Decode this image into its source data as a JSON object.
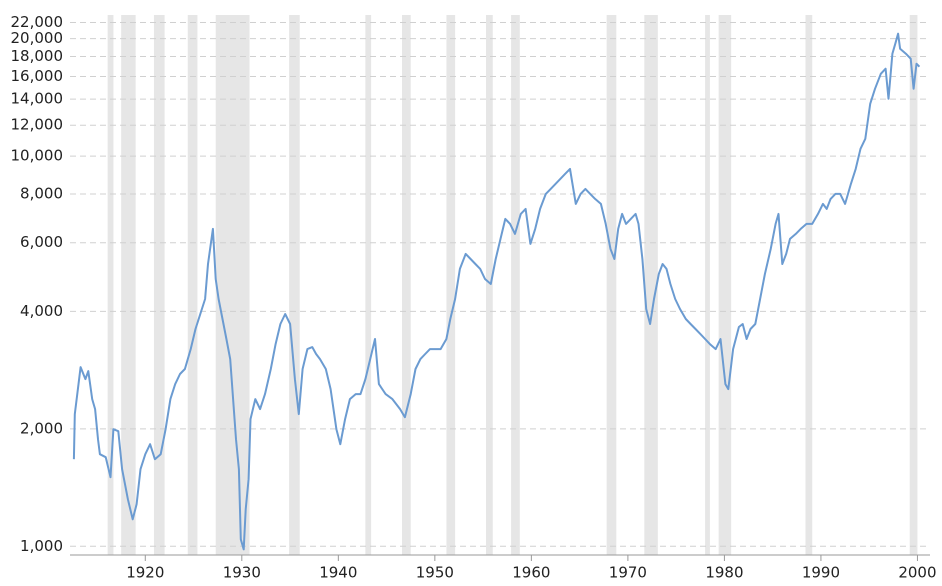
{
  "chart_data": {
    "type": "line",
    "log_scale": true,
    "grid": true,
    "xlim": [
      1912.2,
      2001.3
    ],
    "xticks": [
      1920,
      1930,
      1940,
      1950,
      1960,
      1970,
      1980,
      1990,
      2000
    ],
    "ylim": [
      950,
      23000
    ],
    "yticks": [
      {
        "value": 1000,
        "label": "1,000"
      },
      {
        "value": 2000,
        "label": "2,000"
      },
      {
        "value": 4000,
        "label": "4,000"
      },
      {
        "value": 6000,
        "label": "6,000"
      },
      {
        "value": 8000,
        "label": "8,000"
      },
      {
        "value": 10000,
        "label": "10,000"
      },
      {
        "value": 12000,
        "label": "12,000"
      },
      {
        "value": 14000,
        "label": "14,000"
      },
      {
        "value": 16000,
        "label": "16,000"
      },
      {
        "value": 18000,
        "label": "18,000"
      },
      {
        "value": 20000,
        "label": "20,000"
      },
      {
        "value": 22000,
        "label": "22,000"
      }
    ],
    "shaded_ranges": [
      [
        1916.1,
        1916.7
      ],
      [
        1917.5,
        1919.0
      ],
      [
        1920.9,
        1922.0
      ],
      [
        1924.4,
        1925.4
      ],
      [
        1927.3,
        1930.8
      ],
      [
        1934.9,
        1936.0
      ],
      [
        1942.8,
        1943.4
      ],
      [
        1946.6,
        1947.5
      ],
      [
        1951.2,
        1952.1
      ],
      [
        1955.3,
        1956.0
      ],
      [
        1957.9,
        1958.8
      ],
      [
        1967.8,
        1968.8
      ],
      [
        1971.7,
        1973.1
      ],
      [
        1978.0,
        1978.5
      ],
      [
        1979.4,
        1980.7
      ],
      [
        1988.4,
        1989.1
      ],
      [
        1999.2,
        2000.0
      ]
    ],
    "shade_color": "#e6e6e6",
    "series": [
      {
        "color": "#6b9bd1",
        "x": [
          1912.6,
          1912.7,
          1913.3,
          1913.8,
          1914.1,
          1914.5,
          1914.8,
          1915.1,
          1915.3,
          1915.9,
          1916.4,
          1916.7,
          1917.2,
          1917.6,
          1918.2,
          1918.7,
          1919.1,
          1919.5,
          1920.0,
          1920.5,
          1921.0,
          1921.6,
          1922.1,
          1922.6,
          1923.1,
          1923.6,
          1924.1,
          1924.7,
          1925.2,
          1925.7,
          1926.2,
          1926.5,
          1927.0,
          1927.3,
          1927.6,
          1928.0,
          1928.4,
          1928.8,
          1929.1,
          1929.4,
          1929.7,
          1929.9,
          1930.2,
          1930.4,
          1930.7,
          1930.9,
          1931.4,
          1931.9,
          1932.4,
          1933.0,
          1933.5,
          1934.0,
          1934.5,
          1935.0,
          1935.5,
          1935.9,
          1936.3,
          1936.8,
          1937.3,
          1937.7,
          1938.1,
          1938.7,
          1939.2,
          1939.8,
          1940.2,
          1940.7,
          1941.2,
          1941.8,
          1942.3,
          1942.8,
          1943.3,
          1943.8,
          1944.2,
          1944.9,
          1945.6,
          1946.4,
          1946.9,
          1947.5,
          1948.0,
          1948.5,
          1949.0,
          1949.5,
          1950.6,
          1951.2,
          1951.6,
          1952.1,
          1952.6,
          1953.2,
          1953.7,
          1954.2,
          1954.7,
          1955.2,
          1955.8,
          1956.3,
          1956.8,
          1957.3,
          1957.8,
          1958.3,
          1958.9,
          1959.4,
          1959.9,
          1960.4,
          1960.9,
          1961.5,
          1962.0,
          1962.5,
          1963.0,
          1963.5,
          1964.0,
          1964.6,
          1965.1,
          1965.6,
          1966.1,
          1966.6,
          1967.2,
          1967.7,
          1968.2,
          1968.6,
          1969.0,
          1969.4,
          1969.8,
          1970.3,
          1970.8,
          1971.1,
          1971.5,
          1971.9,
          1972.3,
          1972.7,
          1973.2,
          1973.6,
          1974.0,
          1974.4,
          1974.9,
          1975.4,
          1976.0,
          1976.5,
          1977.0,
          1977.5,
          1978.0,
          1978.5,
          1979.1,
          1979.6,
          1980.1,
          1980.4,
          1980.9,
          1981.5,
          1981.9,
          1982.3,
          1982.7,
          1983.2,
          1983.7,
          1984.2,
          1984.8,
          1985.3,
          1985.6,
          1986.0,
          1986.4,
          1986.8,
          1987.4,
          1987.9,
          1988.5,
          1989.1,
          1989.7,
          1990.2,
          1990.6,
          1991.0,
          1991.5,
          1992.0,
          1992.5,
          1993.1,
          1993.6,
          1994.1,
          1994.6,
          1995.1,
          1995.6,
          1996.2,
          1996.7,
          1997.0,
          1997.4,
          1997.7,
          1998.0,
          1998.2,
          1998.8,
          1999.3,
          1999.6,
          1999.9,
          2000.2
        ],
        "values": [
          1672,
          2182,
          2880,
          2683,
          2813,
          2384,
          2247,
          1882,
          1722,
          1692,
          1504,
          1996,
          1973,
          1576,
          1320,
          1173,
          1281,
          1576,
          1722,
          1827,
          1672,
          1722,
          1996,
          2384,
          2605,
          2764,
          2847,
          3203,
          3605,
          3940,
          4303,
          5292,
          6508,
          4844,
          4303,
          3824,
          3398,
          3019,
          2384,
          1882,
          1576,
          1042,
          982,
          1244,
          1486,
          2118,
          2384,
          2247,
          2455,
          2847,
          3298,
          3713,
          3940,
          3713,
          2683,
          2182,
          2847,
          3203,
          3241,
          3110,
          3019,
          2847,
          2529,
          1996,
          1827,
          2118,
          2384,
          2455,
          2455,
          2683,
          3019,
          3398,
          2605,
          2455,
          2384,
          2247,
          2143,
          2455,
          2847,
          3019,
          3110,
          3203,
          3203,
          3398,
          3824,
          4303,
          5139,
          5615,
          5451,
          5292,
          5139,
          4844,
          4703,
          5451,
          6136,
          6905,
          6705,
          6319,
          7112,
          7325,
          5957,
          6508,
          7325,
          8004,
          8244,
          8491,
          8744,
          9008,
          9277,
          7544,
          8004,
          8244,
          8004,
          7770,
          7544,
          6705,
          5782,
          5451,
          6508,
          7112,
          6705,
          6905,
          7112,
          6705,
          5451,
          4058,
          3713,
          4303,
          4989,
          5292,
          5139,
          4703,
          4303,
          4058,
          3824,
          3713,
          3605,
          3502,
          3398,
          3298,
          3203,
          3398,
          2605,
          2529,
          3203,
          3648,
          3713,
          3398,
          3605,
          3713,
          4303,
          4989,
          5782,
          6705,
          7112,
          5292,
          5615,
          6136,
          6319,
          6508,
          6705,
          6705,
          7112,
          7544,
          7325,
          7770,
          8004,
          8004,
          7544,
          8491,
          9277,
          10440,
          11078,
          13622,
          14883,
          16260,
          16750,
          14030,
          18307,
          19422,
          20599,
          18855,
          18307,
          17774,
          14883,
          17255,
          16950
        ]
      }
    ]
  }
}
